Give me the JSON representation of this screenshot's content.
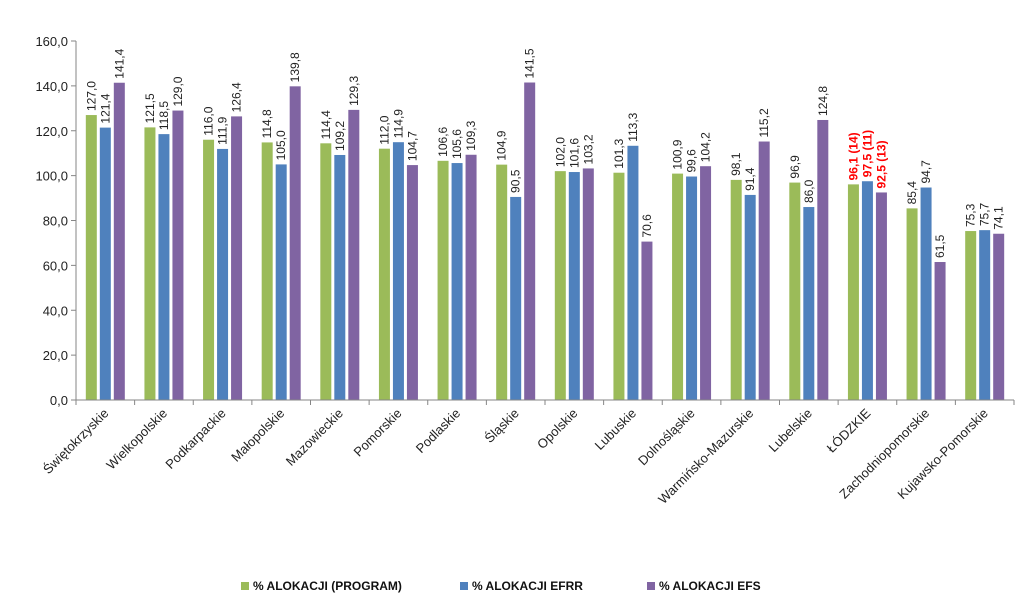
{
  "chart_data": {
    "type": "bar",
    "title": "",
    "xlabel": "",
    "ylabel": "",
    "ylim": [
      0,
      160
    ],
    "yticks": [
      "0,0",
      "20,0",
      "40,0",
      "60,0",
      "80,0",
      "100,0",
      "120,0",
      "140,0",
      "160,0"
    ],
    "grid": false,
    "legend_position": "bottom",
    "categories": [
      "Świętokrzyskie",
      "Wielkopolskie",
      "Podkarpackie",
      "Małopolskie",
      "Mazowieckie",
      "Pomorskie",
      "Podlaskie",
      "Śląskie",
      "Opolskie",
      "Lubuskie",
      "Dolnośląskie",
      "Warmińsko-Mazurskie",
      "Lubelskie",
      "ŁÓDZKIE",
      "Zachodniopomorskie",
      "Kujawsko-Pomorskie"
    ],
    "series": [
      {
        "name": "% ALOKACJI (PROGRAM)",
        "color": "#9bbb59",
        "values": [
          127.0,
          121.5,
          116.0,
          114.8,
          114.4,
          112.0,
          106.6,
          104.9,
          102.0,
          101.3,
          100.9,
          98.1,
          96.9,
          96.1,
          85.4,
          75.3
        ],
        "labels": [
          "127,0",
          "121,5",
          "116,0",
          "114,8",
          "114,4",
          "112,0",
          "106,6",
          "104,9",
          "102,0",
          "101,3",
          "100,9",
          "98,1",
          "96,9",
          "96,1 (14)",
          "85,4",
          "75,3"
        ]
      },
      {
        "name": "% ALOKACJI EFRR",
        "color": "#4f81bd",
        "values": [
          121.4,
          118.5,
          111.9,
          105.0,
          109.2,
          114.9,
          105.6,
          90.5,
          101.6,
          113.3,
          99.6,
          91.4,
          86.0,
          97.5,
          94.7,
          75.7
        ],
        "labels": [
          "121,4",
          "118,5",
          "111,9",
          "105,0",
          "109,2",
          "114,9",
          "105,6",
          "90,5",
          "101,6",
          "113,3",
          "99,6",
          "91,4",
          "86,0",
          "97,5 (11)",
          "94,7",
          "75,7"
        ]
      },
      {
        "name": "% ALOKACJI EFS",
        "color": "#8064a2",
        "values": [
          141.4,
          129.0,
          126.4,
          139.8,
          129.3,
          104.7,
          109.3,
          141.5,
          103.2,
          70.6,
          104.2,
          115.2,
          124.8,
          92.5,
          61.5,
          74.1
        ],
        "labels": [
          "141,4",
          "129,0",
          "126,4",
          "139,8",
          "129,3",
          "104,7",
          "109,3",
          "141,5",
          "103,2",
          "70,6",
          "104,2",
          "115,2",
          "124,8",
          "92,5 (13)",
          "61,5",
          "74,1"
        ]
      }
    ],
    "highlight_category": "ŁÓDZKIE",
    "highlight_color": "#ff0000"
  }
}
